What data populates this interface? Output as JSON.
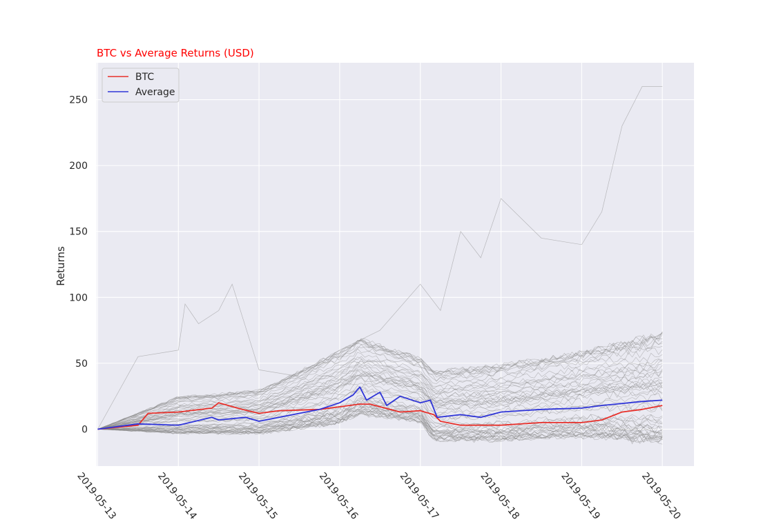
{
  "chart_data": {
    "type": "line",
    "title": "BTC vs Average Returns (USD)",
    "title_color": "#ff0000",
    "xlabel": "",
    "ylabel": "Returns",
    "x_ticks": [
      "2019-05-13",
      "2019-05-14",
      "2019-05-15",
      "2019-05-16",
      "2019-05-17",
      "2019-05-18",
      "2019-05-19",
      "2019-05-20"
    ],
    "xlim": [
      "2019-05-12 23:42",
      "2019-05-20 09:25"
    ],
    "y_ticks": [
      0,
      50,
      100,
      150,
      200,
      250
    ],
    "ylim": [
      -28,
      278
    ],
    "grid": true,
    "background_color": "#eaeaf2",
    "legend_position": "top-left",
    "legend": [
      {
        "name": "BTC",
        "color": "#e8302a"
      },
      {
        "name": "Average",
        "color": "#2e34d8"
      }
    ],
    "series": [
      {
        "name": "BTC",
        "color": "#e8302a",
        "x": [
          "2019-05-13 00:00",
          "2019-05-13 12:00",
          "2019-05-13 15:00",
          "2019-05-14 00:00",
          "2019-05-14 10:00",
          "2019-05-14 12:00",
          "2019-05-14 19:00",
          "2019-05-15 00:00",
          "2019-05-15 06:00",
          "2019-05-15 18:00",
          "2019-05-16 00:00",
          "2019-05-16 06:00",
          "2019-05-16 09:00",
          "2019-05-16 18:00",
          "2019-05-17 00:00",
          "2019-05-17 04:00",
          "2019-05-17 06:00",
          "2019-05-17 12:00",
          "2019-05-17 20:00",
          "2019-05-18 00:00",
          "2019-05-18 12:00",
          "2019-05-19 00:00",
          "2019-05-19 06:00",
          "2019-05-19 12:00",
          "2019-05-19 18:00",
          "2019-05-20 00:00"
        ],
        "y": [
          0,
          3,
          12,
          13,
          16,
          20,
          15,
          12,
          14,
          15,
          17,
          19,
          19,
          13,
          14,
          11,
          6,
          3,
          3,
          3,
          5,
          5,
          7,
          13,
          15,
          18
        ]
      },
      {
        "name": "Average",
        "color": "#2e34d8",
        "x": [
          "2019-05-13 00:00",
          "2019-05-13 12:00",
          "2019-05-14 00:00",
          "2019-05-14 10:00",
          "2019-05-14 12:00",
          "2019-05-14 20:00",
          "2019-05-15 00:00",
          "2019-05-15 12:00",
          "2019-05-15 18:00",
          "2019-05-16 00:00",
          "2019-05-16 04:00",
          "2019-05-16 06:00",
          "2019-05-16 08:00",
          "2019-05-16 12:00",
          "2019-05-16 14:00",
          "2019-05-16 18:00",
          "2019-05-17 00:00",
          "2019-05-17 03:00",
          "2019-05-17 05:00",
          "2019-05-17 12:00",
          "2019-05-17 18:00",
          "2019-05-18 00:00",
          "2019-05-18 12:00",
          "2019-05-19 00:00",
          "2019-05-19 06:00",
          "2019-05-19 18:00",
          "2019-05-20 00:00"
        ],
        "y": [
          0,
          4,
          3,
          9,
          7,
          9,
          6,
          12,
          15,
          20,
          26,
          32,
          22,
          28,
          18,
          25,
          20,
          22,
          9,
          11,
          9,
          13,
          15,
          16,
          18,
          21,
          22
        ]
      }
    ],
    "background_series": {
      "name": "",
      "color": "#8c8c8c",
      "count": 60,
      "x": [
        "2019-05-13 00:00",
        "2019-05-14 00:00",
        "2019-05-15 00:00",
        "2019-05-16 00:00",
        "2019-05-16 06:00",
        "2019-05-17 00:00",
        "2019-05-17 04:00",
        "2019-05-18 00:00",
        "2019-05-19 00:00",
        "2019-05-20 00:00"
      ],
      "y_range_low": [
        0,
        -3,
        -3,
        5,
        12,
        6,
        -8,
        -8,
        -5,
        -10
      ],
      "y_range_high": [
        0,
        25,
        30,
        60,
        70,
        55,
        45,
        50,
        60,
        75
      ],
      "outlier": {
        "x": [
          "2019-05-13 00:00",
          "2019-05-13 12:00",
          "2019-05-14 00:00",
          "2019-05-14 02:00",
          "2019-05-14 06:00",
          "2019-05-14 12:00",
          "2019-05-14 16:00",
          "2019-05-15 00:00",
          "2019-05-15 12:00",
          "2019-05-16 00:00",
          "2019-05-16 12:00",
          "2019-05-17 00:00",
          "2019-05-17 06:00",
          "2019-05-17 12:00",
          "2019-05-17 18:00",
          "2019-05-18 00:00",
          "2019-05-18 12:00",
          "2019-05-19 00:00",
          "2019-05-19 06:00",
          "2019-05-19 12:00",
          "2019-05-19 18:00",
          "2019-05-20 00:00"
        ],
        "y": [
          0,
          55,
          60,
          95,
          80,
          90,
          110,
          45,
          40,
          60,
          75,
          110,
          90,
          150,
          130,
          175,
          145,
          140,
          165,
          230,
          260,
          260
        ]
      }
    }
  }
}
